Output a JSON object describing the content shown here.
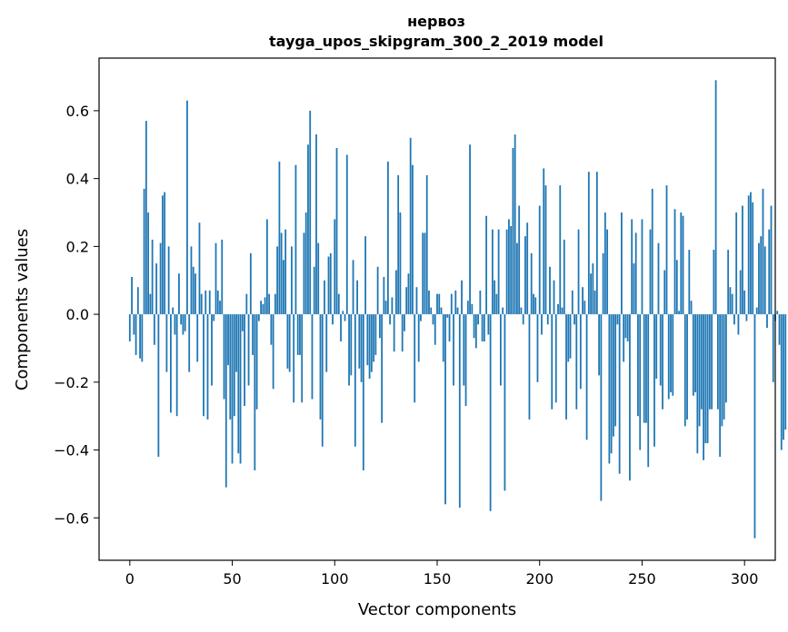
{
  "chart_data": {
    "type": "bar",
    "title": "нервоз",
    "subtitle": "tayga_upos_skipgram_300_2_2019 model",
    "xlabel": "Vector components",
    "ylabel": "Components values",
    "xlim": [
      -15,
      315
    ],
    "ylim": [
      -0.725,
      0.755
    ],
    "xticks": [
      0,
      50,
      100,
      150,
      200,
      250,
      300
    ],
    "xtick_labels": [
      "0",
      "50",
      "100",
      "150",
      "200",
      "250",
      "300"
    ],
    "yticks": [
      0.6,
      0.4,
      0.2,
      0.0,
      -0.2,
      -0.4,
      -0.6
    ],
    "ytick_labels": [
      "0.6",
      "0.4",
      "0.2",
      "0.0",
      "−0.2",
      "−0.4",
      "−0.6"
    ],
    "bar_color": "#1f77b4",
    "grid": false,
    "legend": false,
    "values": [
      -0.08,
      0.11,
      -0.06,
      -0.12,
      0.08,
      -0.13,
      -0.14,
      0.37,
      0.57,
      0.3,
      0.06,
      0.22,
      -0.09,
      0.15,
      -0.42,
      0.21,
      0.35,
      0.36,
      -0.17,
      0.2,
      -0.29,
      0.02,
      -0.06,
      -0.3,
      0.12,
      -0.03,
      -0.06,
      -0.05,
      0.63,
      -0.17,
      0.2,
      0.14,
      0.12,
      -0.14,
      0.27,
      0.06,
      -0.3,
      0.07,
      -0.31,
      0.07,
      -0.21,
      -0.02,
      0.21,
      0.07,
      0.04,
      0.22,
      -0.25,
      -0.51,
      -0.15,
      -0.31,
      -0.44,
      -0.3,
      -0.17,
      -0.41,
      -0.44,
      -0.05,
      -0.27,
      0.06,
      -0.21,
      0.18,
      -0.12,
      -0.46,
      -0.28,
      -0.02,
      0.04,
      0.03,
      0.05,
      0.28,
      0.06,
      -0.09,
      -0.22,
      0.06,
      0.2,
      0.45,
      0.24,
      0.16,
      0.25,
      -0.16,
      -0.17,
      0.2,
      -0.26,
      0.44,
      -0.12,
      -0.12,
      -0.26,
      0.24,
      0.3,
      0.5,
      0.6,
      -0.25,
      0.14,
      0.53,
      0.21,
      -0.31,
      -0.39,
      0.1,
      -0.17,
      0.17,
      0.18,
      -0.03,
      0.28,
      0.49,
      0.06,
      -0.08,
      0.01,
      -0.02,
      0.47,
      -0.21,
      -0.18,
      0.16,
      -0.39,
      0.1,
      -0.16,
      -0.2,
      -0.46,
      0.23,
      -0.15,
      -0.19,
      -0.17,
      -0.14,
      -0.12,
      0.14,
      -0.07,
      -0.32,
      0.11,
      0.04,
      0.45,
      -0.03,
      0.05,
      -0.11,
      0.13,
      0.41,
      0.3,
      -0.11,
      -0.05,
      0.08,
      0.12,
      0.52,
      0.44,
      -0.26,
      0.08,
      -0.14,
      -0.02,
      0.24,
      0.24,
      0.41,
      0.07,
      0.02,
      -0.03,
      -0.09,
      0.06,
      0.06,
      0.02,
      -0.14,
      -0.56,
      -0.01,
      -0.08,
      0.06,
      -0.21,
      0.07,
      0.02,
      -0.57,
      0.1,
      -0.21,
      -0.27,
      0.04,
      0.5,
      0.03,
      -0.07,
      -0.1,
      -0.03,
      0.07,
      -0.08,
      -0.08,
      0.29,
      -0.06,
      -0.58,
      0.25,
      0.1,
      0.06,
      0.25,
      -0.21,
      0.02,
      -0.52,
      0.25,
      0.28,
      0.26,
      0.49,
      0.53,
      0.21,
      0.32,
      0.02,
      -0.03,
      0.23,
      0.27,
      -0.31,
      0.18,
      0.06,
      0.05,
      -0.2,
      0.32,
      -0.06,
      0.43,
      0.38,
      -0.03,
      0.14,
      -0.28,
      0.1,
      -0.26,
      0.03,
      0.38,
      0.02,
      0.22,
      -0.31,
      -0.14,
      -0.13,
      0.07,
      -0.03,
      -0.28,
      0.25,
      -0.22,
      0.08,
      0.04,
      -0.37,
      0.42,
      0.12,
      0.15,
      0.07,
      0.42,
      -0.18,
      -0.55,
      0.18,
      0.3,
      0.25,
      -0.44,
      -0.41,
      -0.36,
      -0.33,
      -0.03,
      -0.47,
      0.3,
      -0.14,
      -0.07,
      -0.08,
      -0.49,
      0.28,
      0.15,
      0.24,
      -0.3,
      -0.4,
      0.28,
      -0.32,
      -0.32,
      -0.45,
      0.25,
      0.37,
      -0.39,
      -0.19,
      0.21,
      -0.21,
      -0.28,
      0.13,
      0.38,
      -0.25,
      -0.23,
      -0.24,
      0.31,
      0.16,
      0.01,
      0.3,
      0.29,
      -0.33,
      -0.31,
      0.19,
      0.04,
      -0.24,
      -0.23,
      -0.41,
      -0.33,
      -0.28,
      -0.43,
      -0.38,
      -0.38,
      -0.28,
      -0.28,
      0.19,
      0.69,
      -0.28,
      -0.42,
      -0.33,
      -0.31,
      -0.26,
      0.19,
      0.08,
      0.06,
      -0.03,
      0.3,
      -0.06,
      0.13,
      0.32,
      0.07,
      -0.02,
      0.35,
      0.36,
      0.33,
      -0.66,
      0.02,
      0.21,
      0.23,
      0.37,
      0.2,
      -0.04,
      0.25,
      0.32,
      -0.2,
      -0.02,
      0.01,
      -0.09,
      -0.4,
      -0.37,
      -0.34
    ]
  }
}
